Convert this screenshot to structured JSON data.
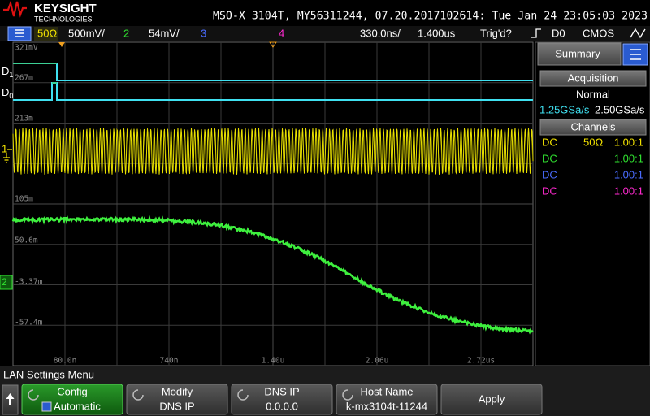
{
  "header": {
    "brand": "KEYSIGHT",
    "brand_sub": "TECHNOLOGIES",
    "title": "MSO-X 3104T, MY56311244, 07.20.2017102614: Tue Jan 24 23:05:03 2023"
  },
  "status_bar": {
    "ch1_impedance": "50Ω",
    "ch1_scale": "500mV/",
    "ch2_label": "2",
    "ch2_scale": "54mV/",
    "ch3_label": "3",
    "ch4_label": "4",
    "time_scale": "330.0ns/",
    "delay": "1.400us",
    "trigger_status": "Trig'd?",
    "trigger_source": "D0",
    "logic": "CMOS"
  },
  "display": {
    "y_labels": [
      "321mV",
      "267m",
      "213m",
      "105m",
      "50.6m",
      "-3.37m",
      "-57.4m"
    ],
    "x_labels": [
      "80.0n",
      "740n",
      "1.40u",
      "2.06u",
      "2.72us"
    ],
    "markers": {
      "d1": {
        "name": "D",
        "index": "1"
      },
      "d0": {
        "name": "D",
        "index": "0"
      },
      "ch1": "1",
      "ch2": "2"
    }
  },
  "side_panel": {
    "tab": "Summary",
    "acquisition": {
      "title": "Acquisition",
      "mode": "Normal",
      "rates": [
        "1.25GSa/s",
        "2.50GSa/s"
      ]
    },
    "channels": {
      "title": "Channels",
      "rows": [
        {
          "coupling": "DC",
          "impedance": "50Ω",
          "probe": "1.00:1"
        },
        {
          "coupling": "DC",
          "probe": "1.00:1"
        },
        {
          "coupling": "DC",
          "probe": "1.00:1"
        },
        {
          "coupling": "DC",
          "probe": "1.00:1"
        }
      ]
    }
  },
  "menu": {
    "title": "LAN Settings Menu",
    "softkeys": [
      {
        "label": "Config",
        "value": "Automatic"
      },
      {
        "label": "Modify",
        "value": "DNS IP"
      },
      {
        "label": "DNS IP",
        "value": "0.0.0.0"
      },
      {
        "label": "Host Name",
        "value": "k-mx3104t-11244"
      },
      {
        "label": "Apply"
      }
    ]
  }
}
